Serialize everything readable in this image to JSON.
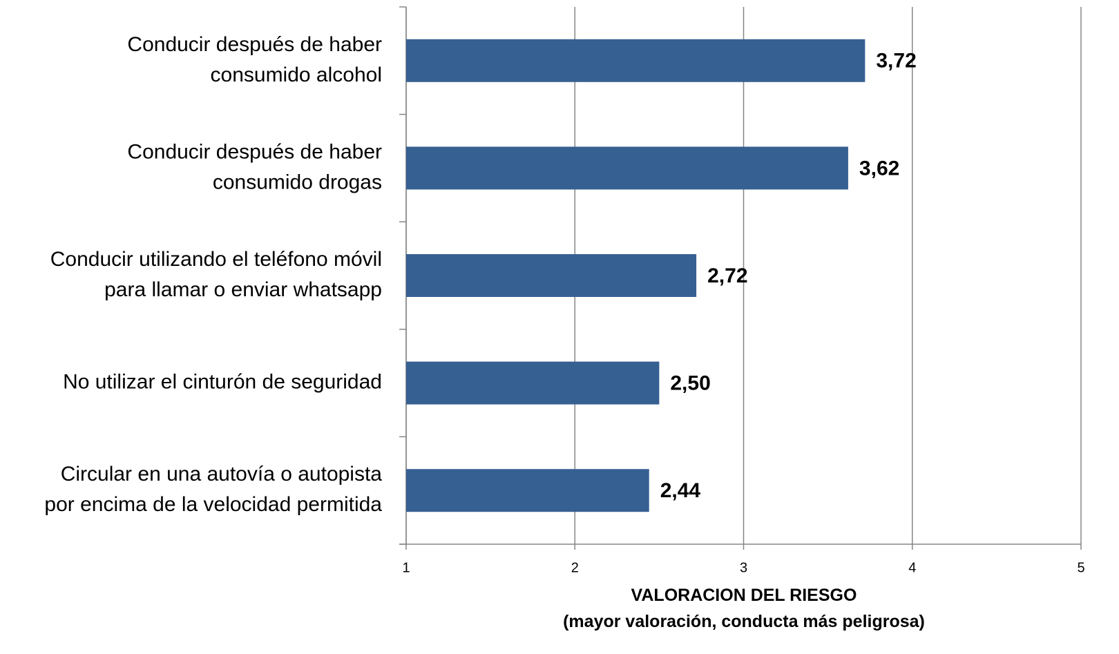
{
  "chart_data": {
    "type": "barh",
    "categories": [
      "Conducir después de haber\nconsumido alcohol",
      "Conducir después de haber\nconsumido drogas",
      "Conducir utilizando el teléfono móvil\npara llamar o enviar whatsapp",
      "No utilizar el cinturón de seguridad",
      "Circular en una autovía o autopista\npor encima de la velocidad permitida"
    ],
    "values": [
      3.72,
      3.62,
      2.72,
      2.5,
      2.44
    ],
    "value_labels": [
      "3,72",
      "3,62",
      "2,72",
      "2,50",
      "2,44"
    ],
    "color": "#376092",
    "xlabel": "VALORACION DEL RIESGO\n(mayor valoración, conducta más peligrosa)",
    "xlim": [
      1,
      5
    ],
    "xticks": [
      1,
      2,
      3,
      4,
      5
    ],
    "grid": true
  }
}
